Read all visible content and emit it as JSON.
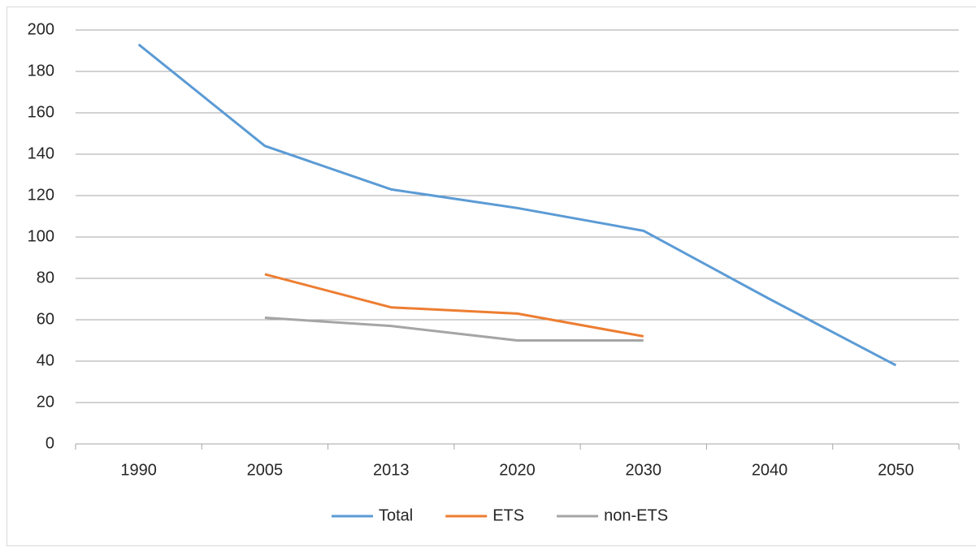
{
  "chart_data": {
    "type": "line",
    "categories": [
      "1990",
      "2005",
      "2013",
      "2020",
      "2030",
      "2040",
      "2050"
    ],
    "series": [
      {
        "name": "Total",
        "color": "#5b9bd5",
        "values": [
          193,
          144,
          123,
          114,
          103,
          70,
          38
        ]
      },
      {
        "name": "ETS",
        "color": "#ed7d31",
        "values": [
          null,
          82,
          66,
          63,
          52,
          null,
          null
        ]
      },
      {
        "name": "non-ETS",
        "color": "#a5a5a5",
        "values": [
          null,
          61,
          57,
          50,
          50,
          null,
          null
        ]
      }
    ],
    "ylim": [
      0,
      200
    ],
    "yticks": [
      0,
      20,
      40,
      60,
      80,
      100,
      120,
      140,
      160,
      180,
      200
    ],
    "grid": true,
    "legend": "bottom"
  }
}
